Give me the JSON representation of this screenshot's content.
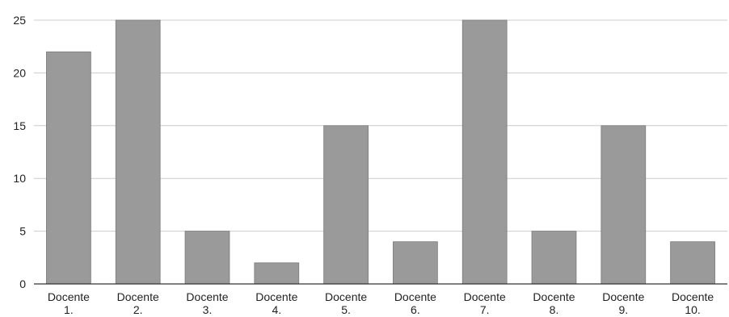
{
  "chart_data": {
    "type": "bar",
    "title": "",
    "xlabel": "",
    "ylabel": "",
    "categories": [
      [
        "Docente",
        "1."
      ],
      [
        "Docente",
        "2."
      ],
      [
        "Docente",
        "3."
      ],
      [
        "Docente",
        "4."
      ],
      [
        "Docente",
        "5."
      ],
      [
        "Docente",
        "6."
      ],
      [
        "Docente",
        "7."
      ],
      [
        "Docente",
        "8."
      ],
      [
        "Docente",
        "9."
      ],
      [
        "Docente",
        "10."
      ]
    ],
    "values": [
      22,
      25,
      5,
      2,
      15,
      4,
      25,
      5,
      15,
      4
    ],
    "ylim": [
      0,
      25
    ],
    "yticks": [
      0,
      5,
      10,
      15,
      20,
      25
    ],
    "grid": true,
    "legend": "none",
    "colors": {
      "bar": "#9a9a9a",
      "grid": "#cccccc",
      "axis": "#333333"
    }
  }
}
